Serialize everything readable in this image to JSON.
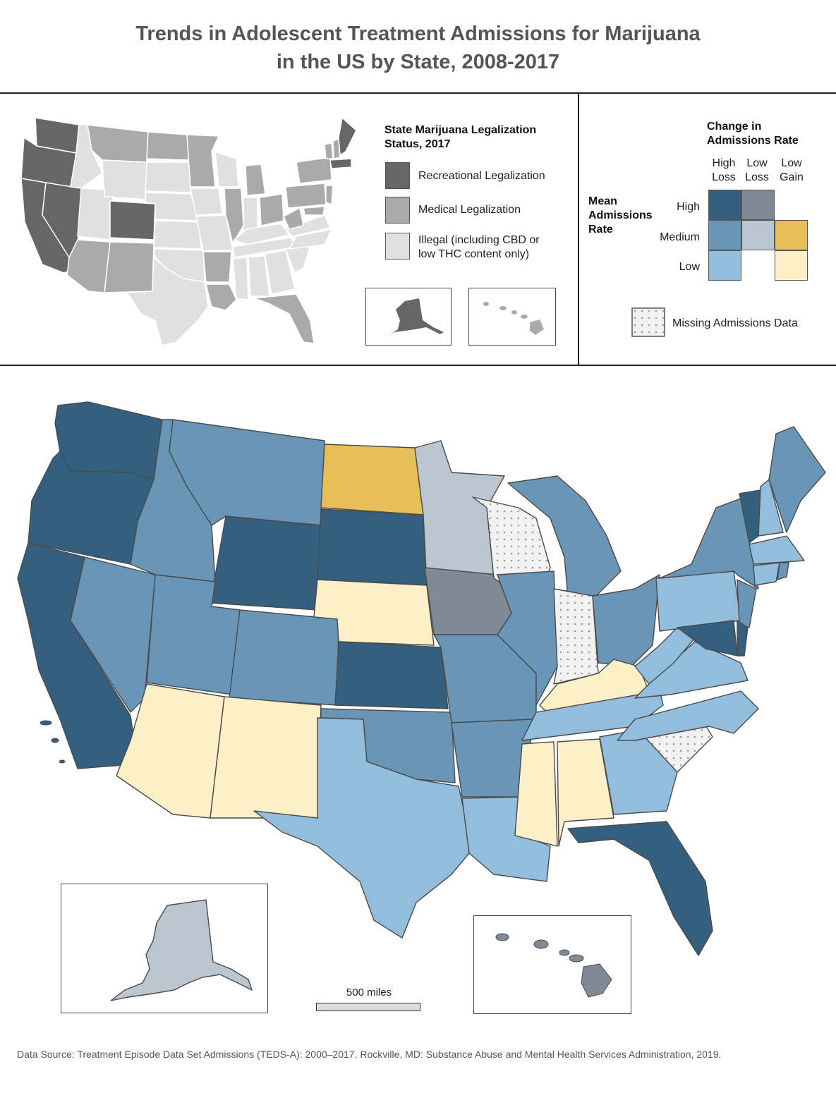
{
  "title": {
    "line1": "Trends in Adolescent Treatment Admissions for Marijuana",
    "line2": "in the US by State, 2008-2017"
  },
  "legalization_legend": {
    "title_line1": "State Marijuana Legalization",
    "title_line2": "Status, 2017",
    "items": [
      {
        "label": "Recreational Legalization",
        "color": "#666666"
      },
      {
        "label": "Medical Legalization",
        "color": "#aaaaaa"
      },
      {
        "label_line1": "Illegal (including CBD or",
        "label_line2": "low THC content only)",
        "color": "#e0e0e0"
      }
    ]
  },
  "bivariate_legend": {
    "title_line1": "Change in",
    "title_line2": "Admissions Rate",
    "row_axis_line1": "Mean",
    "row_axis_line2": "Admissions",
    "row_axis_line3": "Rate",
    "columns": [
      {
        "line1": "High",
        "line2": "Loss"
      },
      {
        "line1": "Low",
        "line2": "Loss"
      },
      {
        "line1": "Low",
        "line2": "Gain"
      }
    ],
    "rows": [
      "High",
      "Medium",
      "Low"
    ],
    "colors": {
      "high_highloss": "#355f7f",
      "high_lowloss": "#7f8a96",
      "medium_highloss": "#6995b6",
      "medium_lowloss": "#bac6d0",
      "medium_lowgain": "#e8bf57",
      "low_highloss": "#93bddc",
      "low_lowgain": "#fdefc8"
    },
    "missing_label": "Missing Admissions Data"
  },
  "scale": {
    "label": "500 miles"
  },
  "source": "Data Source: Treatment Episode Data Set Admissions (TEDS-A): 2000–2017. Rockville, MD: Substance Abuse and Mental Health Services Administration, 2019."
}
